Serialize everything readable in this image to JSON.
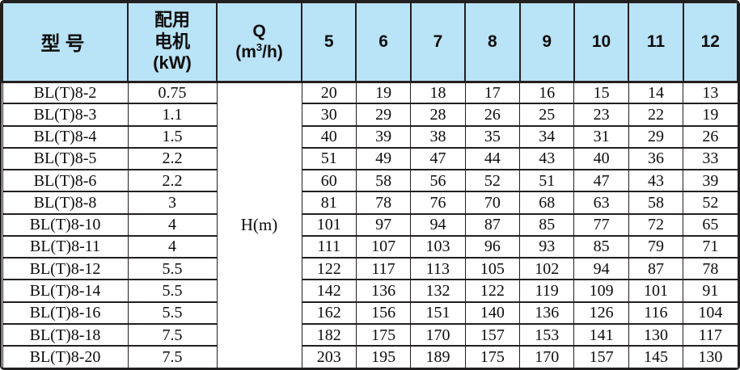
{
  "colors": {
    "header_bg": "#b9e3f6",
    "border": "#231f20",
    "body_bg": "#ffffff",
    "text": "#0d0d0d"
  },
  "header": {
    "model": "型号",
    "motor_lines": [
      "配用",
      "电机",
      "(kW)"
    ],
    "q_label": "Q",
    "q_unit": {
      "prefix": "(m",
      "sup": "3",
      "suffix": "/h)"
    },
    "flow_values": [
      "5",
      "6",
      "7",
      "8",
      "9",
      "10",
      "11",
      "12"
    ]
  },
  "body": {
    "head_unit": "H(m)",
    "rows": [
      {
        "model": "BL(T)8-2",
        "power": "0.75",
        "heads": [
          "20",
          "19",
          "18",
          "17",
          "16",
          "15",
          "14",
          "13"
        ]
      },
      {
        "model": "BL(T)8-3",
        "power": "1.1",
        "heads": [
          "30",
          "29",
          "28",
          "26",
          "25",
          "23",
          "22",
          "19"
        ]
      },
      {
        "model": "BL(T)8-4",
        "power": "1.5",
        "heads": [
          "40",
          "39",
          "38",
          "35",
          "34",
          "31",
          "29",
          "26"
        ]
      },
      {
        "model": "BL(T)8-5",
        "power": "2.2",
        "heads": [
          "51",
          "49",
          "47",
          "44",
          "43",
          "40",
          "36",
          "33"
        ]
      },
      {
        "model": "BL(T)8-6",
        "power": "2.2",
        "heads": [
          "60",
          "58",
          "56",
          "52",
          "51",
          "47",
          "43",
          "39"
        ]
      },
      {
        "model": "BL(T)8-8",
        "power": "3",
        "heads": [
          "81",
          "78",
          "76",
          "70",
          "68",
          "63",
          "58",
          "52"
        ]
      },
      {
        "model": "BL(T)8-10",
        "power": "4",
        "heads": [
          "101",
          "97",
          "94",
          "87",
          "85",
          "77",
          "72",
          "65"
        ]
      },
      {
        "model": "BL(T)8-11",
        "power": "4",
        "heads": [
          "111",
          "107",
          "103",
          "96",
          "93",
          "85",
          "79",
          "71"
        ]
      },
      {
        "model": "BL(T)8-12",
        "power": "5.5",
        "heads": [
          "122",
          "117",
          "113",
          "105",
          "102",
          "94",
          "87",
          "78"
        ]
      },
      {
        "model": "BL(T)8-14",
        "power": "5.5",
        "heads": [
          "142",
          "136",
          "132",
          "122",
          "119",
          "109",
          "101",
          "91"
        ]
      },
      {
        "model": "BL(T)8-16",
        "power": "5.5",
        "heads": [
          "162",
          "156",
          "151",
          "140",
          "136",
          "126",
          "116",
          "104"
        ]
      },
      {
        "model": "BL(T)8-18",
        "power": "7.5",
        "heads": [
          "182",
          "175",
          "170",
          "157",
          "153",
          "141",
          "130",
          "117"
        ]
      },
      {
        "model": "BL(T)8-20",
        "power": "7.5",
        "heads": [
          "203",
          "195",
          "189",
          "175",
          "170",
          "157",
          "145",
          "130"
        ]
      }
    ]
  },
  "chart_data": {
    "type": "table",
    "title": "",
    "columns": [
      "型号",
      "配用电机(kW)",
      "Q(m³/h)",
      "5",
      "6",
      "7",
      "8",
      "9",
      "10",
      "11",
      "12"
    ],
    "merged_cell_note": "H(m) spans all 13 data rows in the Q(m³/h) column",
    "rows": [
      [
        "BL(T)8-2",
        "0.75",
        "H(m)",
        20,
        19,
        18,
        17,
        16,
        15,
        14,
        13
      ],
      [
        "BL(T)8-3",
        "1.1",
        "H(m)",
        30,
        29,
        28,
        26,
        25,
        23,
        22,
        19
      ],
      [
        "BL(T)8-4",
        "1.5",
        "H(m)",
        40,
        39,
        38,
        35,
        34,
        31,
        29,
        26
      ],
      [
        "BL(T)8-5",
        "2.2",
        "H(m)",
        51,
        49,
        47,
        44,
        43,
        40,
        36,
        33
      ],
      [
        "BL(T)8-6",
        "2.2",
        "H(m)",
        60,
        58,
        56,
        52,
        51,
        47,
        43,
        39
      ],
      [
        "BL(T)8-8",
        "3",
        "H(m)",
        81,
        78,
        76,
        70,
        68,
        63,
        58,
        52
      ],
      [
        "BL(T)8-10",
        "4",
        "H(m)",
        101,
        97,
        94,
        87,
        85,
        77,
        72,
        65
      ],
      [
        "BL(T)8-11",
        "4",
        "H(m)",
        111,
        107,
        103,
        96,
        93,
        85,
        79,
        71
      ],
      [
        "BL(T)8-12",
        "5.5",
        "H(m)",
        122,
        117,
        113,
        105,
        102,
        94,
        87,
        78
      ],
      [
        "BL(T)8-14",
        "5.5",
        "H(m)",
        142,
        136,
        132,
        122,
        119,
        109,
        101,
        91
      ],
      [
        "BL(T)8-16",
        "5.5",
        "H(m)",
        162,
        156,
        151,
        140,
        136,
        126,
        116,
        104
      ],
      [
        "BL(T)8-18",
        "7.5",
        "H(m)",
        182,
        175,
        170,
        157,
        153,
        141,
        130,
        117
      ],
      [
        "BL(T)8-20",
        "7.5",
        "H(m)",
        203,
        195,
        189,
        175,
        170,
        157,
        145,
        130
      ]
    ]
  }
}
